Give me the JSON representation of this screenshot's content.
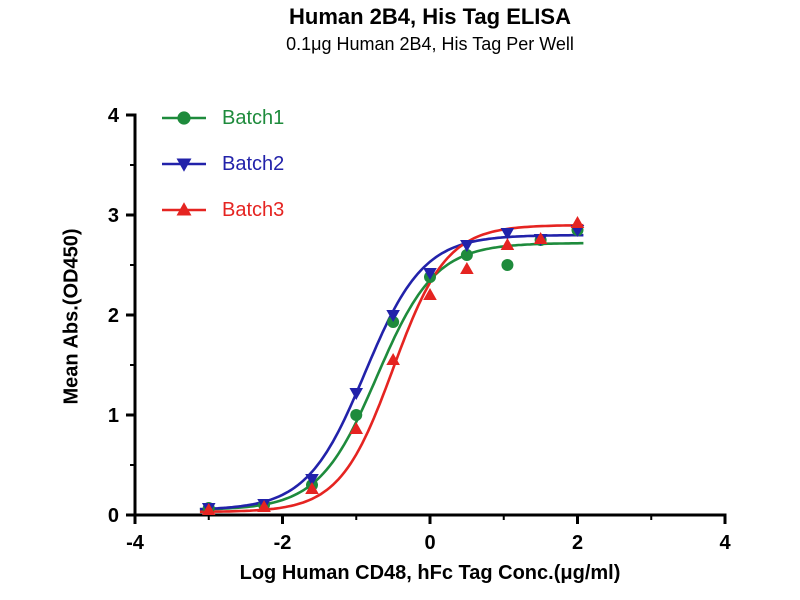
{
  "chart_data": {
    "type": "scatter",
    "title": "Human 2B4, His Tag ELISA",
    "subtitle": "0.1μg Human 2B4, His Tag Per Well",
    "xlabel": "Log Human CD48, hFc Tag Conc.(μg/ml)",
    "ylabel": "Mean Abs.(OD450)",
    "xlim": [
      -4,
      4
    ],
    "ylim": [
      0,
      4
    ],
    "x_ticks": [
      -4,
      -2,
      0,
      2,
      4
    ],
    "y_ticks": [
      0,
      1,
      2,
      3,
      4
    ],
    "grid": false,
    "legend_position": "top-left",
    "axis_color": "#000000",
    "x": [
      -3.0,
      -2.25,
      -1.6,
      -1.0,
      -0.5,
      0.0,
      0.5,
      1.05,
      1.5,
      2.0
    ],
    "series": [
      {
        "name": "Batch1",
        "color": "#1e8b3c",
        "marker": "circle",
        "values": [
          0.07,
          0.1,
          0.3,
          1.0,
          1.93,
          2.38,
          2.6,
          2.5,
          2.75,
          2.85
        ],
        "fit": {
          "bottom": 0.05,
          "top": 2.72,
          "logec50": -0.72,
          "hill": 1.1
        }
      },
      {
        "name": "Batch2",
        "color": "#2222aa",
        "marker": "triangle-down",
        "values": [
          0.07,
          0.11,
          0.36,
          1.22,
          2.0,
          2.42,
          2.7,
          2.82,
          2.76,
          2.85
        ],
        "fit": {
          "bottom": 0.05,
          "top": 2.8,
          "logec50": -0.88,
          "hill": 1.1
        }
      },
      {
        "name": "Batch3",
        "color": "#e52421",
        "marker": "triangle-up",
        "values": [
          0.05,
          0.08,
          0.26,
          0.86,
          1.55,
          2.2,
          2.46,
          2.7,
          2.76,
          2.92
        ],
        "fit": {
          "bottom": 0.03,
          "top": 2.9,
          "logec50": -0.5,
          "hill": 1.2
        }
      }
    ]
  }
}
